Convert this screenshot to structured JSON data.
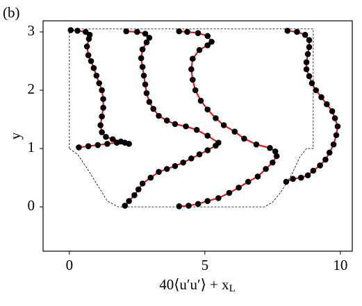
{
  "chart_data": {
    "type": "line",
    "annotation": "(b)",
    "xlabel": "40⟨u′u′⟩ + x_L",
    "ylabel": "y",
    "xlim": [
      -0.97,
      10.44
    ],
    "ylim": [
      -0.76,
      3.19
    ],
    "xticks": [
      0,
      5,
      10
    ],
    "yticks": [
      0,
      1,
      2,
      3
    ],
    "line_color": "#ff0000",
    "marker_color": "#000000",
    "outline_color": "#000000",
    "outline": {
      "x": [
        0,
        0,
        9,
        9,
        8.75,
        8.5,
        8.2,
        7.8,
        7.5,
        7.2,
        1.8,
        1.4,
        1.0,
        0.6,
        0.3,
        0
      ],
      "y": [
        1,
        3.05,
        3.05,
        1,
        1,
        0.85,
        0.55,
        0.25,
        0.08,
        0,
        0,
        0.1,
        0.4,
        0.7,
        0.9,
        1
      ]
    },
    "series": [
      {
        "x": [
          0.35,
          0.7,
          1.05,
          1.4,
          1.75,
          2.05,
          2.2,
          1.9,
          1.6,
          1.35,
          1.2,
          1.15,
          1.2,
          1.25,
          1.25,
          1.2,
          1.1,
          1.0,
          0.9,
          0.8,
          0.7,
          0.65,
          0.72,
          0.75,
          0.6,
          0.3,
          0.05
        ],
        "y": [
          1.02,
          1.04,
          1.06,
          1.08,
          1.1,
          1.1,
          1.08,
          1.12,
          1.16,
          1.2,
          1.28,
          1.4,
          1.55,
          1.7,
          1.85,
          2.0,
          2.12,
          2.25,
          2.38,
          2.5,
          2.6,
          2.75,
          2.88,
          2.95,
          3.0,
          3.02,
          3.03
        ]
      },
      {
        "x": [
          2.05,
          2.2,
          2.4,
          2.55,
          2.7,
          3.0,
          3.3,
          3.6,
          3.9,
          4.2,
          4.5,
          4.8,
          5.1,
          5.4,
          5.5,
          5.1,
          4.7,
          4.3,
          3.9,
          3.6,
          3.3,
          3.1,
          2.95,
          2.85,
          2.8,
          2.75,
          2.7,
          2.65,
          2.7,
          2.85,
          2.95,
          2.8,
          2.5,
          2.1
        ],
        "y": [
          0.02,
          0.1,
          0.2,
          0.3,
          0.4,
          0.5,
          0.6,
          0.65,
          0.7,
          0.76,
          0.83,
          0.9,
          0.97,
          1.05,
          1.1,
          1.22,
          1.32,
          1.38,
          1.42,
          1.48,
          1.56,
          1.68,
          1.8,
          1.95,
          2.1,
          2.25,
          2.4,
          2.55,
          2.7,
          2.82,
          2.9,
          2.97,
          3.0,
          3.01
        ]
      },
      {
        "x": [
          4.05,
          4.4,
          4.75,
          5.1,
          5.5,
          5.9,
          6.25,
          6.6,
          6.95,
          7.25,
          7.5,
          7.65,
          7.6,
          7.4,
          6.9,
          6.45,
          6.1,
          5.7,
          5.4,
          5.1,
          4.85,
          4.65,
          4.55,
          4.5,
          4.55,
          4.8,
          5.1,
          5.25,
          5.1,
          4.75,
          4.35,
          4.05
        ],
        "y": [
          0.01,
          0.02,
          0.05,
          0.1,
          0.15,
          0.24,
          0.33,
          0.43,
          0.52,
          0.65,
          0.76,
          0.87,
          0.95,
          1.01,
          1.07,
          1.17,
          1.29,
          1.4,
          1.52,
          1.67,
          1.82,
          2.0,
          2.18,
          2.36,
          2.54,
          2.69,
          2.77,
          2.83,
          2.93,
          2.98,
          3.0,
          3.01
        ]
      },
      {
        "x": [
          8.0,
          8.25,
          8.55,
          8.8,
          9.0,
          9.25,
          9.45,
          9.6,
          9.75,
          9.85,
          9.9,
          9.8,
          9.7,
          9.5,
          9.3,
          9.1,
          8.95,
          8.85,
          8.75,
          8.75,
          8.8,
          8.85,
          8.85,
          8.7,
          8.4,
          8.05
        ],
        "y": [
          0.43,
          0.48,
          0.5,
          0.54,
          0.62,
          0.71,
          0.81,
          0.93,
          1.07,
          1.23,
          1.38,
          1.52,
          1.64,
          1.76,
          1.88,
          2.0,
          2.12,
          2.24,
          2.36,
          2.48,
          2.62,
          2.74,
          2.86,
          2.95,
          3.0,
          3.02
        ]
      }
    ]
  }
}
